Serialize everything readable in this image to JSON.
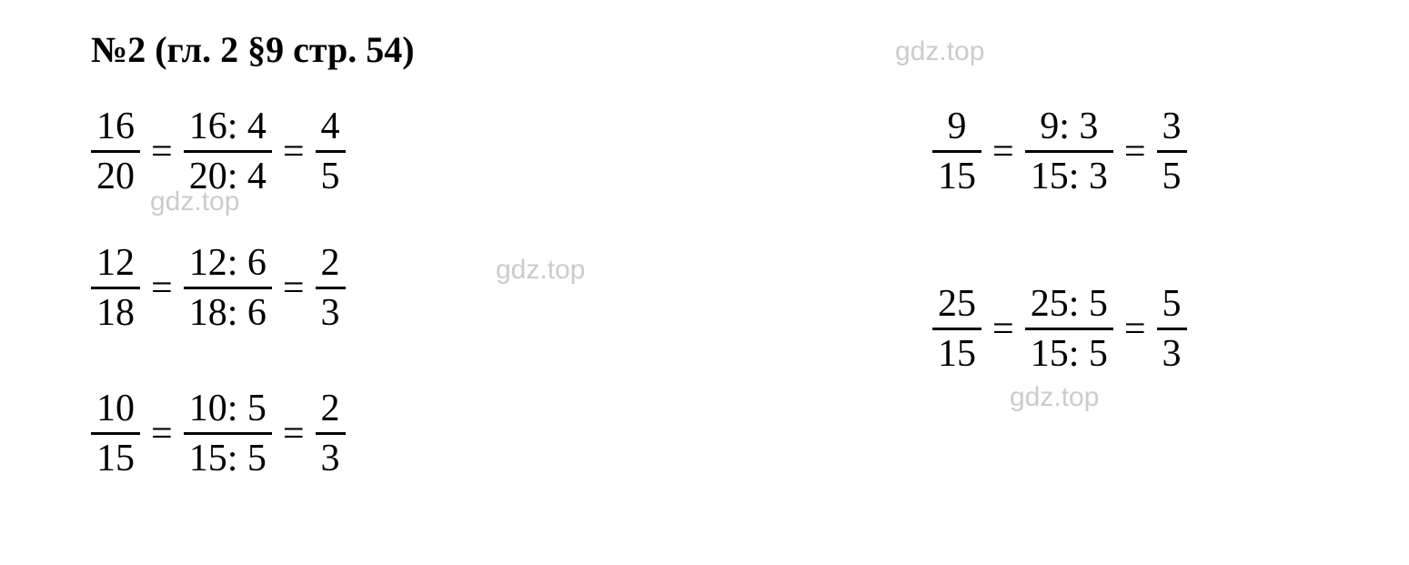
{
  "title": "№2 (гл. 2 §9 стр. 54)",
  "watermark": "gdz.top",
  "equations": {
    "eq1": {
      "f1": {
        "num": "16",
        "den": "20"
      },
      "f2": {
        "num": "16: 4",
        "den": "20: 4"
      },
      "f3": {
        "num": "4",
        "den": "5"
      }
    },
    "eq2": {
      "f1": {
        "num": "12",
        "den": "18"
      },
      "f2": {
        "num": "12: 6",
        "den": "18: 6"
      },
      "f3": {
        "num": "2",
        "den": "3"
      }
    },
    "eq3": {
      "f1": {
        "num": "10",
        "den": "15"
      },
      "f2": {
        "num": "10: 5",
        "den": "15: 5"
      },
      "f3": {
        "num": "2",
        "den": "3"
      }
    },
    "eq4": {
      "f1": {
        "num": "9",
        "den": "15"
      },
      "f2": {
        "num": "9: 3",
        "den": "15: 3"
      },
      "f3": {
        "num": "3",
        "den": "5"
      }
    },
    "eq5": {
      "f1": {
        "num": "25",
        "den": "15"
      },
      "f2": {
        "num": "25: 5",
        "den": "15: 5"
      },
      "f3": {
        "num": "5",
        "den": "3"
      }
    }
  },
  "colors": {
    "text": "#000000",
    "watermark": "#cccccc",
    "background": "#ffffff"
  },
  "typography": {
    "title_fontsize": 40,
    "title_weight": "bold",
    "fraction_fontsize": 42,
    "watermark_fontsize": 30,
    "font_family": "Times New Roman"
  }
}
